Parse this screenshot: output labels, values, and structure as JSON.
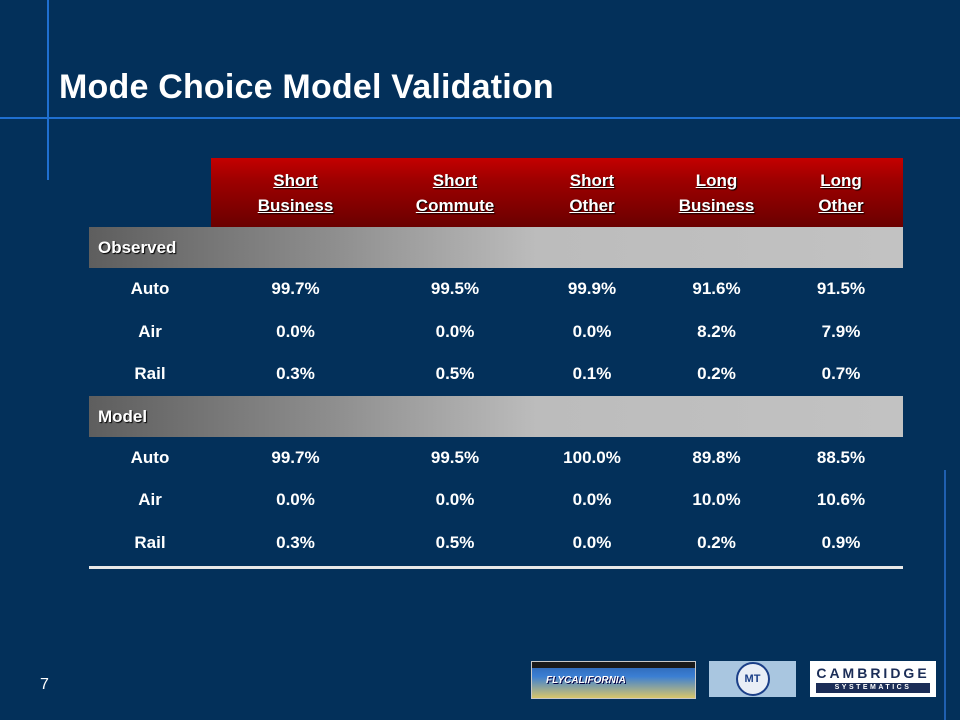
{
  "slide": {
    "title": "Mode Choice Model Validation",
    "page_number": "7"
  },
  "table": {
    "columns": [
      {
        "line1": "Short",
        "line2": "Business"
      },
      {
        "line1": "Short",
        "line2": "Commute"
      },
      {
        "line1": "Short",
        "line2": "Other"
      },
      {
        "line1": "Long",
        "line2": "Business"
      },
      {
        "line1": "Long",
        "line2": "Other"
      }
    ],
    "sections": [
      {
        "label": "Observed",
        "rows": [
          {
            "mode": "Auto",
            "values": [
              "99.7%",
              "99.5%",
              "99.9%",
              "91.6%",
              "91.5%"
            ]
          },
          {
            "mode": "Air",
            "values": [
              "0.0%",
              "0.0%",
              "0.0%",
              "8.2%",
              "7.9%"
            ]
          },
          {
            "mode": "Rail",
            "values": [
              "0.3%",
              "0.5%",
              "0.1%",
              "0.2%",
              "0.7%"
            ]
          }
        ]
      },
      {
        "label": "Model",
        "rows": [
          {
            "mode": "Auto",
            "values": [
              "99.7%",
              "99.5%",
              "100.0%",
              "89.8%",
              "88.5%"
            ]
          },
          {
            "mode": "Air",
            "values": [
              "0.0%",
              "0.0%",
              "0.0%",
              "10.0%",
              "10.6%"
            ]
          },
          {
            "mode": "Rail",
            "values": [
              "0.3%",
              "0.5%",
              "0.0%",
              "0.2%",
              "0.9%"
            ]
          }
        ]
      }
    ]
  },
  "logos": {
    "fly_california": "FLYCALIFORNIA",
    "mt": "MT",
    "cambridge_line1": "CAMBRIDGE",
    "cambridge_line2": "SYSTEMATICS"
  },
  "colors": {
    "background": "#03305a",
    "accent_line": "#1f6fd0",
    "header_red": "#a00000"
  }
}
